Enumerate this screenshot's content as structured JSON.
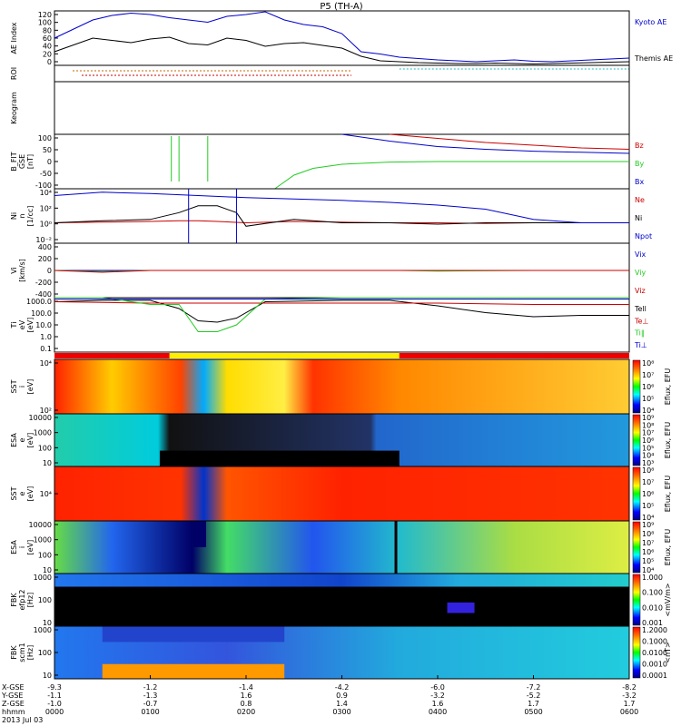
{
  "title": "P5 (TH-A)",
  "colors": {
    "blue": "#0000cc",
    "red": "#cc0000",
    "green": "#22cc22",
    "black": "#000000",
    "cyan": "#22bbbb",
    "yellow": "#ffff00"
  },
  "chart_data": {
    "type": "line",
    "title": "P5 (TH-A)",
    "xtime": {
      "row_labels": [
        "X-GSE",
        "Y-GSE",
        "Z-GSE",
        "hhmm"
      ],
      "columns": [
        {
          "x": "-9.3",
          "y": "-1.1",
          "z": "-1.0",
          "t": "0000"
        },
        {
          "x": "-1.2",
          "y": "-1.3",
          "z": "-0.7",
          "t": "0100"
        },
        {
          "x": "-1.4",
          "y": "1.6",
          "z": "0.8",
          "t": "0200"
        },
        {
          "x": "-4.2",
          "y": "0.9",
          "z": "1.4",
          "t": "0300"
        },
        {
          "x": "-6.0",
          "y": "-3.2",
          "z": "1.6",
          "t": "0400"
        },
        {
          "x": "-7.2",
          "y": "-5.2",
          "z": "1.7",
          "t": "0500"
        },
        {
          "x": "-8.2",
          "y": "-3.2",
          "z": "1.7",
          "t": "0600"
        }
      ],
      "date": "2013 Jul 03"
    },
    "panels": [
      {
        "id": "ae",
        "ylabel": "AE Index",
        "yticks": [
          "120",
          "100",
          "80",
          "60",
          "40",
          "20",
          "0"
        ],
        "ylim": [
          0,
          120
        ],
        "series": [
          {
            "name": "Kyoto AE",
            "color": "#0000cc",
            "x": [
              0,
              0.2,
              0.4,
              0.6,
              0.8,
              1.0,
              1.2,
              1.4,
              1.6,
              1.8,
              2.0,
              2.2,
              2.4,
              2.6,
              2.8,
              3.0,
              3.2,
              3.4,
              3.6,
              3.8,
              4.0,
              4.2,
              4.4,
              4.6,
              4.8,
              5.0,
              5.2,
              5.4,
              5.6,
              5.8,
              6.0
            ],
            "y": [
              60,
              80,
              100,
              110,
              115,
              112,
              105,
              100,
              95,
              108,
              112,
              118,
              100,
              90,
              85,
              70,
              30,
              25,
              18,
              15,
              12,
              10,
              8,
              10,
              12,
              9,
              8,
              10,
              12,
              14,
              16
            ]
          },
          {
            "name": "Themis AE",
            "color": "#000000",
            "x": [
              0,
              0.2,
              0.4,
              0.6,
              0.8,
              1.0,
              1.2,
              1.4,
              1.6,
              1.8,
              2.0,
              2.2,
              2.4,
              2.6,
              2.8,
              3.0,
              3.2,
              3.4,
              3.6,
              3.8,
              4.0,
              4.2,
              4.4,
              4.6,
              4.8,
              5.0,
              5.2,
              5.4,
              5.6,
              5.8,
              6.0
            ],
            "y": [
              30,
              45,
              60,
              55,
              50,
              58,
              62,
              48,
              45,
              60,
              55,
              42,
              48,
              50,
              44,
              38,
              20,
              10,
              8,
              6,
              5,
              4,
              4,
              5,
              4,
              3,
              4,
              5,
              6,
              7,
              8
            ]
          }
        ]
      },
      {
        "id": "roi",
        "ylabel": "ROI",
        "yticks": []
      },
      {
        "id": "keogram",
        "ylabel": "Keogram",
        "yticks": []
      },
      {
        "id": "bfit",
        "ylabel": "B_FIT\nGSE\n[nT]",
        "yticks": [
          "100",
          "50",
          "0",
          "-50",
          "-100"
        ],
        "ylim": [
          -100,
          100
        ],
        "series": [
          {
            "name": "Bz",
            "color": "#cc0000",
            "x": [
              3.5,
              4.0,
              4.5,
              5.0,
              5.5,
              6.0
            ],
            "y": [
              100,
              85,
              70,
              60,
              50,
              45
            ]
          },
          {
            "name": "By",
            "color": "#22cc22",
            "x": [
              2.3,
              2.5,
              2.7,
              3.0,
              3.5,
              4.0,
              5.0,
              6.0
            ],
            "y": [
              -100,
              -50,
              -25,
              -10,
              -2,
              0,
              0,
              0
            ]
          },
          {
            "name": "Bx",
            "color": "#0000cc",
            "x": [
              3.0,
              3.5,
              4.0,
              4.5,
              5.0,
              5.5,
              6.0
            ],
            "y": [
              100,
              75,
              55,
              45,
              38,
              34,
              30
            ]
          }
        ]
      },
      {
        "id": "ni",
        "ylabel": "Ni\nn\n[1/cc]",
        "yticks": [
          "10⁴",
          "10²",
          "10⁰",
          "10⁻²"
        ],
        "ylim": [
          -3,
          5
        ],
        "series": [
          {
            "name": "Ne",
            "color": "#cc0000",
            "x": [
              0,
              0.5,
              1.0,
              1.3,
              1.5,
              1.7,
              2.0,
              2.5,
              3.0,
              3.5,
              4.0,
              4.5,
              5.0,
              5.5,
              6.0
            ],
            "y": [
              0,
              0.1,
              0.2,
              0.3,
              0.3,
              0.2,
              0,
              0.2,
              0.1,
              0,
              0,
              -0.1,
              0,
              0,
              0
            ]
          },
          {
            "name": "Ni",
            "color": "#000000",
            "x": [
              0,
              0.5,
              1.0,
              1.3,
              1.5,
              1.7,
              1.9,
              2.0,
              2.5,
              3.0,
              3.5,
              4.0,
              4.5,
              5.0,
              5.5,
              6.0
            ],
            "y": [
              0,
              0.3,
              0.5,
              1.5,
              2.5,
              2.5,
              1.5,
              -0.5,
              0.5,
              0,
              0,
              -0.2,
              0,
              0,
              0,
              0
            ]
          },
          {
            "name": "Npot",
            "color": "#0000cc",
            "x": [
              0,
              0.5,
              1.0,
              1.5,
              2.0,
              2.5,
              3.0,
              3.5,
              4.0,
              4.5,
              5.0,
              5.5,
              6.0
            ],
            "y": [
              4.0,
              4.5,
              4.3,
              4.0,
              3.7,
              3.5,
              3.3,
              3.0,
              2.6,
              2.0,
              0.5,
              0,
              0
            ]
          }
        ]
      },
      {
        "id": "vi",
        "ylabel": "Vi\n[km/s]",
        "yticks": [
          "400",
          "200",
          "0",
          "-200",
          "-400"
        ],
        "ylim": [
          -450,
          450
        ],
        "series": [
          {
            "name": "Vix",
            "color": "#0000cc",
            "x": [
              0,
              0.5,
              1.0
            ],
            "y": [
              0,
              0,
              0
            ]
          },
          {
            "name": "Viy",
            "color": "#22cc22",
            "x": [
              0,
              0.5,
              1.0,
              3.6,
              4.0,
              5.0,
              6.0
            ],
            "y": [
              0,
              -20,
              0,
              0,
              -10,
              0,
              0
            ]
          },
          {
            "name": "Viz",
            "color": "#cc0000",
            "x": [
              0,
              0.5,
              1.0,
              3.6,
              4.0,
              5.0,
              6.0
            ],
            "y": [
              0,
              -30,
              0,
              0,
              0,
              0,
              0
            ]
          }
        ]
      },
      {
        "id": "ti",
        "ylabel": "Ti\neV\n[eV]",
        "yticks": [
          "1000.0",
          "100.0",
          "10.0",
          "1.0",
          "0.1"
        ],
        "ylim": [
          -1,
          3
        ],
        "series": [
          {
            "name": "Tell",
            "color": "#000000",
            "x": [
              0,
              0.5,
              1.0,
              1.3,
              1.5,
              1.7,
              1.9,
              2.2,
              3.0,
              3.5,
              4.0,
              4.5,
              5.0,
              5.5,
              6.0
            ],
            "y": [
              2.7,
              2.8,
              2.8,
              2.2,
              1.3,
              1.2,
              1.5,
              2.7,
              2.8,
              2.8,
              2.4,
              1.9,
              1.6,
              1.7,
              1.7
            ]
          },
          {
            "name": "Te⊥",
            "color": "#cc0000",
            "x": [
              0,
              1.0,
              2.0,
              3.0,
              4.0,
              5.0,
              6.0
            ],
            "y": [
              2.7,
              2.6,
              2.6,
              2.6,
              2.6,
              2.5,
              2.5
            ]
          },
          {
            "name": "Ti‖",
            "color": "#22cc22",
            "x": [
              0,
              0.5,
              1.0,
              1.3,
              1.5,
              1.7,
              1.9,
              2.2,
              3.0,
              4.0,
              5.0,
              6.0
            ],
            "y": [
              3.0,
              3.0,
              2.5,
              2.5,
              0.5,
              0.5,
              1.0,
              2.9,
              3.0,
              3.0,
              3.0,
              3.0
            ]
          },
          {
            "name": "Ti⊥",
            "color": "#0000cc",
            "x": [
              0,
              1.0,
              2.0,
              3.0,
              4.0,
              5.0,
              6.0
            ],
            "y": [
              2.9,
              2.9,
              2.9,
              2.9,
              2.9,
              2.9,
              2.9
            ]
          }
        ]
      },
      {
        "id": "sst_i",
        "type": "heatmap",
        "ylabel": "SST\ni\n[eV]",
        "yticks": [
          "10⁴",
          "10²"
        ],
        "colorbar": {
          "label": "Eflux, EFU",
          "ticks": [
            "10⁸",
            "10⁷",
            "10⁶",
            "10⁵",
            "10⁴"
          ]
        }
      },
      {
        "id": "esa_e",
        "type": "heatmap",
        "ylabel": "ESA\ne\n[eV]",
        "yticks": [
          "10000",
          "1000",
          "100",
          "10"
        ],
        "colorbar": {
          "label": "Eflux, EFU",
          "ticks": [
            "10⁹",
            "10⁸",
            "10⁷",
            "10⁶",
            "10⁵",
            "10⁴",
            "10³"
          ]
        }
      },
      {
        "id": "sst_e",
        "type": "heatmap",
        "ylabel": "SST\ne\n[eV]",
        "yticks": [
          "10⁴"
        ],
        "colorbar": {
          "label": "Eflux, EFU",
          "ticks": [
            "10⁸",
            "10⁷",
            "10⁶",
            "10⁵",
            "10⁴"
          ]
        }
      },
      {
        "id": "esa_i",
        "type": "heatmap",
        "ylabel": "ESA\ni\n[eV]",
        "yticks": [
          "10000",
          "1000",
          "100",
          "10"
        ],
        "colorbar": {
          "label": "Eflux, EFU",
          "ticks": [
            "10⁹",
            "10⁸",
            "10⁷",
            "10⁶",
            "10⁵",
            "10⁴"
          ]
        }
      },
      {
        "id": "fbk_e",
        "type": "heatmap",
        "ylabel": "FBK\nefp12\n[Hz]",
        "yticks": [
          "1000",
          "100",
          "10"
        ],
        "colorbar": {
          "label": "<mV/m>",
          "ticks": [
            "1.000",
            "0.100",
            "0.010",
            "0.001"
          ]
        }
      },
      {
        "id": "fbk_b",
        "type": "heatmap",
        "ylabel": "FBK\nscm1\n[Hz]",
        "yticks": [
          "1000",
          "100",
          "10"
        ],
        "colorbar": {
          "label": "<nT>",
          "ticks": [
            "1.2000",
            "0.1000",
            "0.0100",
            "0.0010",
            "0.0001"
          ]
        }
      }
    ]
  },
  "legend_labels": {
    "ae": [
      "Kyoto AE",
      "Themis AE"
    ],
    "bfit": [
      "Bz",
      "By",
      "Bx"
    ],
    "ni": [
      "Ne",
      "Ni",
      "Npot"
    ],
    "vi": [
      "Viz",
      "Viy",
      "Vix"
    ],
    "ti": [
      "Tell",
      "Te⊥",
      "Ti‖",
      "Ti⊥"
    ]
  }
}
